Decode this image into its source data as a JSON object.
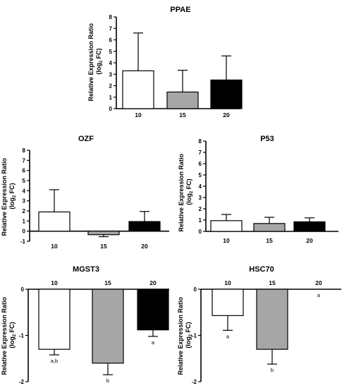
{
  "figure": {
    "colors": {
      "c10": "#ffffff",
      "c15": "#a6a6a6",
      "c20": "#000000",
      "stroke": "#000000"
    }
  },
  "chart_data": [
    {
      "id": "ppae",
      "type": "bar",
      "title": "PPAE",
      "ylabel_line1": "Relative Expression Ratio",
      "ylabel_line2_main": "(log",
      "ylabel_line2_sub": "2",
      "ylabel_line2_end": " FC)",
      "categories": [
        "10",
        "15",
        "20"
      ],
      "values": [
        3.3,
        1.45,
        2.5
      ],
      "errors": [
        3.3,
        1.9,
        2.1
      ],
      "yticks": [
        "0",
        "1",
        "2",
        "3",
        "4",
        "5",
        "6",
        "7",
        "8"
      ],
      "ylim": [
        0,
        8
      ],
      "sig_labels": [
        "",
        "",
        ""
      ]
    },
    {
      "id": "ozf",
      "type": "bar",
      "title": "OZF",
      "ylabel_line1": "Relative Expression Ratio",
      "ylabel_line2_main": "(log",
      "ylabel_line2_sub": "2",
      "ylabel_line2_end": " FC)",
      "categories": [
        "10",
        "15",
        "20"
      ],
      "values": [
        1.9,
        -0.35,
        0.95
      ],
      "errors": [
        2.2,
        0.2,
        1.0
      ],
      "yticks": [
        "-1",
        "0",
        "1",
        "2",
        "3",
        "4",
        "5",
        "6",
        "7",
        "8"
      ],
      "ylim": [
        -1,
        8
      ],
      "sig_labels": [
        "",
        "",
        ""
      ]
    },
    {
      "id": "p53",
      "type": "bar",
      "title": "P53",
      "ylabel_line1": "Relative Expression Ratio",
      "ylabel_line2_main": "(log",
      "ylabel_line2_sub": "2",
      "ylabel_line2_end": " FC)",
      "categories": [
        "10",
        "15",
        "20"
      ],
      "values": [
        0.95,
        0.7,
        0.85
      ],
      "errors": [
        0.55,
        0.55,
        0.35
      ],
      "yticks": [
        "0",
        "1",
        "2",
        "3",
        "4",
        "5",
        "6",
        "7",
        "8"
      ],
      "ylim": [
        0,
        8
      ],
      "sig_labels": [
        "",
        "",
        ""
      ]
    },
    {
      "id": "mgst3",
      "type": "bar",
      "title": "MGST3",
      "ylabel_line1": "Relative Expression Ratio",
      "ylabel_line2_main": "(log",
      "ylabel_line2_sub": "2",
      "ylabel_line2_end": " FC)",
      "categories": [
        "10",
        "15",
        "20"
      ],
      "values": [
        -1.3,
        -1.6,
        -0.88
      ],
      "errors": [
        0.12,
        0.25,
        0.14
      ],
      "yticks": [
        "-2",
        "-1",
        "0"
      ],
      "ylim": [
        -2,
        0
      ],
      "sig_labels": [
        "a,b",
        "b",
        "a"
      ]
    },
    {
      "id": "hsc70",
      "type": "bar",
      "title": "HSC70",
      "ylabel_line1": "Relative Expression Ratio",
      "ylabel_line2_main": "(log",
      "ylabel_line2_sub": "2",
      "ylabel_line2_end": " FC)",
      "categories": [
        "10",
        "15",
        "20"
      ],
      "values": [
        -0.57,
        -1.3,
        0
      ],
      "errors": [
        0.32,
        0.32,
        0
      ],
      "yticks": [
        "-2",
        "-1",
        "0"
      ],
      "ylim": [
        -2,
        0
      ],
      "sig_labels": [
        "a",
        "b",
        "a"
      ]
    }
  ]
}
